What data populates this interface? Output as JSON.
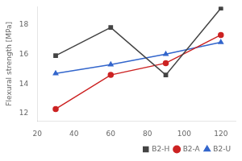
{
  "chart_data": {
    "type": "line",
    "ylabel": "Flexural strength [MPa]",
    "x": [
      30,
      60,
      90,
      120
    ],
    "series": [
      {
        "name": "B2-H",
        "color": "#444444",
        "marker": "square",
        "values": [
          15.9,
          17.8,
          14.6,
          19.1
        ]
      },
      {
        "name": "B2-A",
        "color": "#cc2222",
        "marker": "circle",
        "values": [
          12.3,
          14.6,
          15.4,
          17.3
        ]
      },
      {
        "name": "B2-U",
        "color": "#3366cc",
        "marker": "triangle",
        "values": [
          14.7,
          15.3,
          16.0,
          16.8
        ]
      }
    ],
    "xlim": [
      20,
      128
    ],
    "xticks": [
      20,
      40,
      60,
      80,
      100,
      120
    ],
    "ylim": [
      11.5,
      19.2
    ],
    "yticks": [
      12,
      14,
      16,
      18
    ],
    "grid": false,
    "legend": "lower right"
  }
}
